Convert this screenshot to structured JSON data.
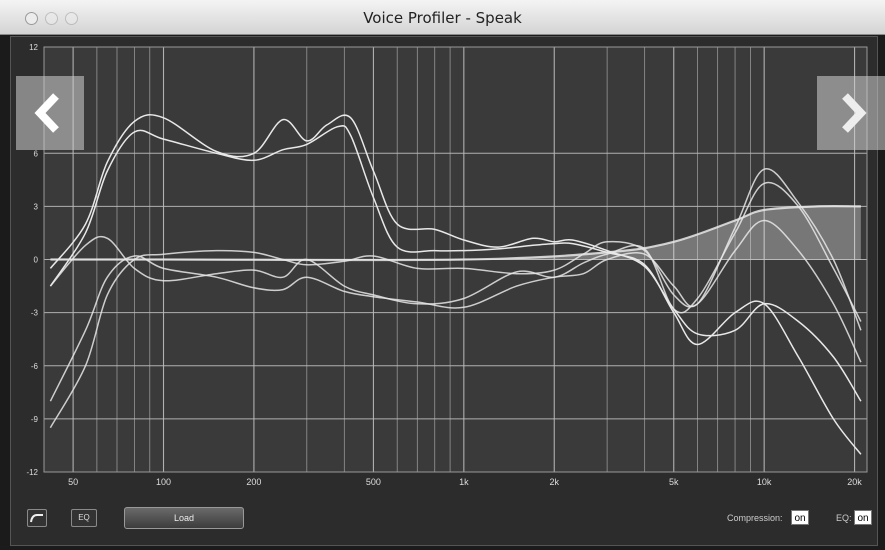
{
  "window": {
    "title": "Voice Profiler - Speak"
  },
  "controls": {
    "eq_button": "EQ",
    "load_button": "Load",
    "compression_label": "Compression:",
    "compression_value": "on",
    "eq_label": "EQ:",
    "eq_value": "on"
  },
  "icons": {
    "back": "chevron-left-icon",
    "forward": "chevron-right-icon",
    "curve": "curve-icon"
  },
  "colors": {
    "plot_bg": "#3a3a3a",
    "grid": "#bdbdbd",
    "curves": "#e8e8e8"
  },
  "chart_data": {
    "type": "line",
    "x_scale": "log",
    "xlim": [
      40,
      22000
    ],
    "ylim": [
      -12,
      12
    ],
    "x_ticks": [
      {
        "value": 50,
        "label": "50"
      },
      {
        "value": 100,
        "label": "100"
      },
      {
        "value": 200,
        "label": "200"
      },
      {
        "value": 500,
        "label": "500"
      },
      {
        "value": 1000,
        "label": "1k"
      },
      {
        "value": 2000,
        "label": "2k"
      },
      {
        "value": 5000,
        "label": "5k"
      },
      {
        "value": 10000,
        "label": "10k"
      },
      {
        "value": 20000,
        "label": "20k"
      }
    ],
    "y_ticks": [
      12,
      6,
      3,
      0,
      -3,
      -6,
      -9,
      -12
    ],
    "grid": true,
    "series": [
      {
        "x": [
          42,
          55,
          65,
          80,
          100,
          150,
          200,
          250,
          300,
          380,
          420,
          500,
          600,
          800,
          1000,
          1300,
          1700,
          2000,
          2300,
          3000,
          4000,
          5000,
          6000,
          8000,
          10000,
          13000,
          17000,
          21000
        ],
        "values": [
          -1.5,
          1.5,
          5.0,
          7.2,
          6.8,
          6.0,
          5.6,
          6.2,
          6.5,
          7.5,
          7.0,
          3.5,
          0.7,
          0.5,
          0.5,
          0.6,
          0.8,
          0.9,
          0.9,
          0.4,
          -0.3,
          -3.0,
          -4.8,
          -3.0,
          -2.5,
          -5.5,
          -9.0,
          -11.0
        ]
      },
      {
        "x": [
          42,
          55,
          65,
          80,
          100,
          150,
          200,
          250,
          300,
          350,
          420,
          500,
          600,
          800,
          1000,
          1300,
          1700,
          2000,
          2300,
          3000,
          4000,
          5000,
          6000,
          8000,
          10000,
          13000,
          17000,
          21000
        ],
        "values": [
          -0.5,
          2.0,
          5.5,
          7.8,
          8.0,
          6.1,
          6.0,
          7.9,
          6.7,
          7.6,
          8.0,
          5.0,
          2.0,
          1.7,
          1.1,
          0.7,
          1.2,
          1.0,
          1.1,
          0.5,
          -0.4,
          -2.8,
          -4.2,
          -4.0,
          -2.5,
          -3.5,
          -5.5,
          -8.0
        ]
      },
      {
        "x": [
          42,
          55,
          65,
          80,
          100,
          150,
          200,
          250,
          300,
          400,
          500,
          700,
          1000,
          1500,
          2000,
          2500,
          3000,
          4000,
          5000,
          6000,
          8000,
          10000,
          13000,
          17000,
          21000
        ],
        "values": [
          -9.5,
          -6.0,
          -2.0,
          0.0,
          0.3,
          0.5,
          0.4,
          0.0,
          -0.3,
          -0.1,
          0.2,
          -0.5,
          -0.5,
          -0.8,
          -0.6,
          0.3,
          1.0,
          0.5,
          -2.0,
          -2.5,
          0.5,
          2.2,
          0.5,
          -2.5,
          -5.8
        ]
      },
      {
        "x": [
          42,
          55,
          65,
          80,
          100,
          150,
          200,
          250,
          300,
          400,
          500,
          700,
          1000,
          1500,
          2000,
          2500,
          3000,
          4000,
          5000,
          6000,
          8000,
          10000,
          13000,
          17000,
          21000
        ],
        "values": [
          -1.5,
          0.8,
          1.2,
          -0.5,
          -1.2,
          -0.8,
          -0.6,
          -1.0,
          0.0,
          -1.5,
          -2.0,
          -2.5,
          -2.2,
          -0.7,
          -1.0,
          -0.2,
          0.3,
          0.6,
          -2.8,
          -2.2,
          1.5,
          4.3,
          3.0,
          -0.5,
          -3.5
        ]
      },
      {
        "x": [
          42,
          55,
          65,
          80,
          100,
          150,
          200,
          250,
          300,
          400,
          500,
          700,
          1000,
          1500,
          2000,
          2500,
          3000,
          4000,
          5000,
          6000,
          8000,
          10000,
          13000,
          17000,
          21000
        ],
        "values": [
          -8.0,
          -4.0,
          -1.0,
          0.2,
          -0.5,
          -1.0,
          -1.6,
          -1.7,
          -1.0,
          -1.8,
          -2.1,
          -2.4,
          -2.7,
          -1.5,
          -1.0,
          -0.8,
          0.0,
          0.3,
          -1.5,
          -2.5,
          1.8,
          5.1,
          3.2,
          0.0,
          -4.0
        ]
      },
      {
        "x": [
          42,
          100,
          1000,
          3000,
          5000,
          8000,
          10000,
          15000,
          21000
        ],
        "values": [
          0,
          0,
          0,
          0.4,
          1.0,
          2.2,
          2.8,
          3.0,
          3.0
        ]
      }
    ]
  }
}
